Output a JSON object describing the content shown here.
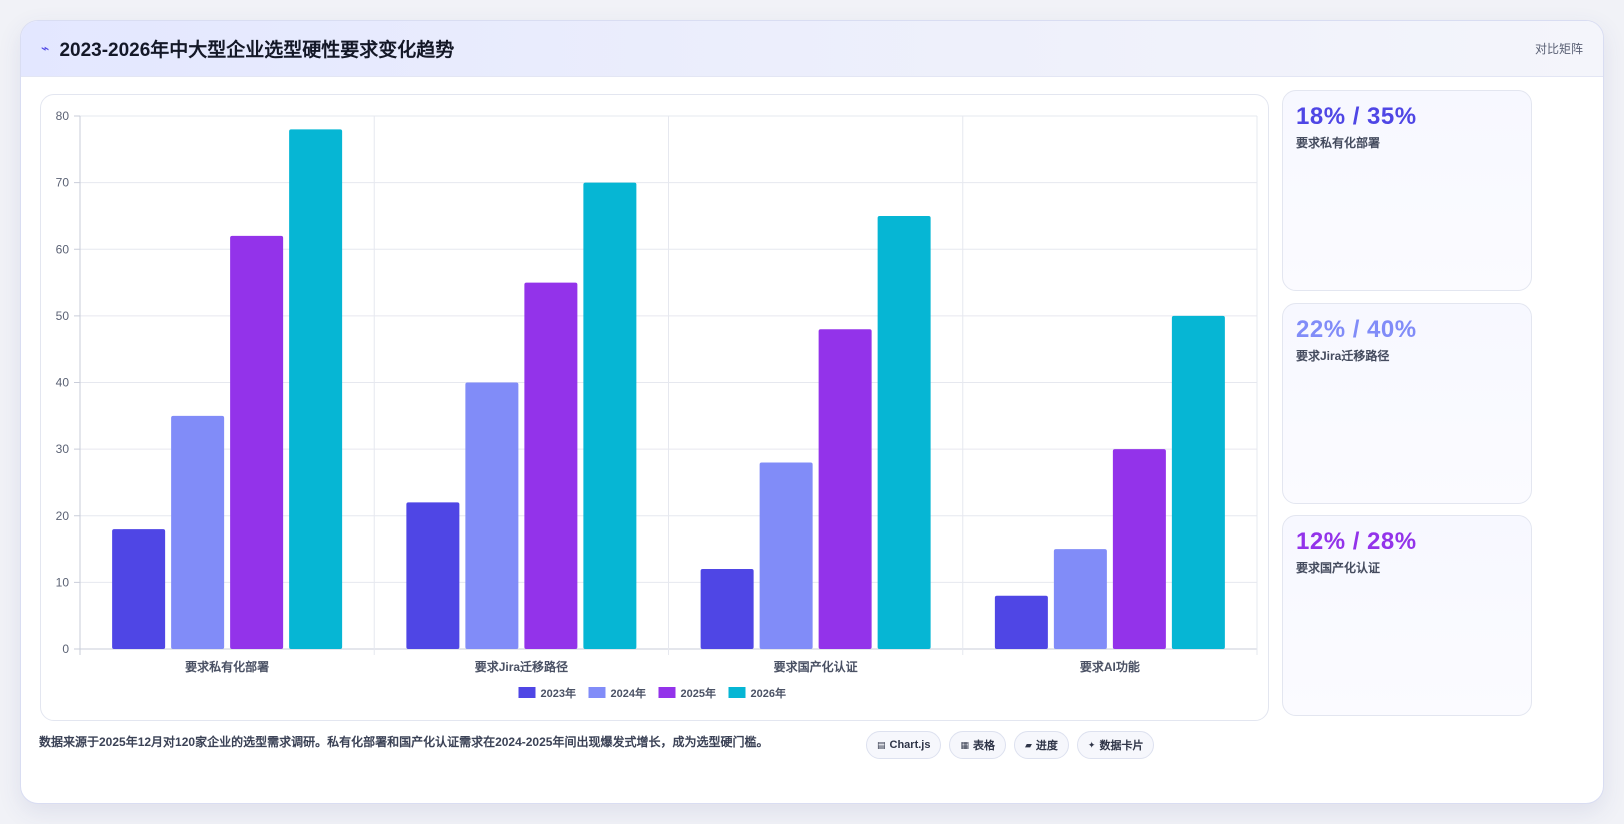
{
  "header": {
    "icon": "bolt-icon",
    "title": "2023-2026年中大型企业选型硬性要求变化趋势",
    "right_label": "对比矩阵"
  },
  "chart_data": {
    "type": "bar",
    "categories": [
      "要求私有化部署",
      "要求Jira迁移路径",
      "要求国产化认证",
      "要求AI功能"
    ],
    "series": [
      {
        "name": "2023年",
        "values": [
          18,
          22,
          12,
          8
        ],
        "color": "#4f46e5"
      },
      {
        "name": "2024年",
        "values": [
          35,
          40,
          28,
          15
        ],
        "color": "#818cf8"
      },
      {
        "name": "2025年",
        "values": [
          62,
          55,
          48,
          30
        ],
        "color": "#9333ea"
      },
      {
        "name": "2026年",
        "values": [
          78,
          70,
          65,
          50
        ],
        "color": "#06b6d4"
      }
    ],
    "ylim": [
      0,
      80
    ],
    "yticks": [
      0,
      10,
      20,
      30,
      40,
      50,
      60,
      70,
      80
    ],
    "grid": true,
    "legend": "bottom-center",
    "title": "",
    "xlabel": "",
    "ylabel": ""
  },
  "stats": [
    {
      "value": "18% / 35%",
      "label": "要求私有化部署",
      "color": "#4f46e5"
    },
    {
      "value": "22% / 40%",
      "label": "要求Jira迁移路径",
      "color": "#818cf8"
    },
    {
      "value": "12% / 28%",
      "label": "要求国产化认证",
      "color": "#9333ea"
    }
  ],
  "footer": {
    "note": "数据来源于2025年12月对120家企业的选型需求调研。私有化部署和国产化认证需求在2024-2025年间出现爆发式增长，成为选型硬门槛。",
    "chips": [
      {
        "icon": "chart-icon",
        "glyph": "▤",
        "label": "Chart.js"
      },
      {
        "icon": "table-icon",
        "glyph": "▦",
        "label": "表格"
      },
      {
        "icon": "progress-icon",
        "glyph": "▰",
        "label": "进度"
      },
      {
        "icon": "sparkle-icon",
        "glyph": "✦",
        "label": "数据卡片"
      }
    ]
  }
}
